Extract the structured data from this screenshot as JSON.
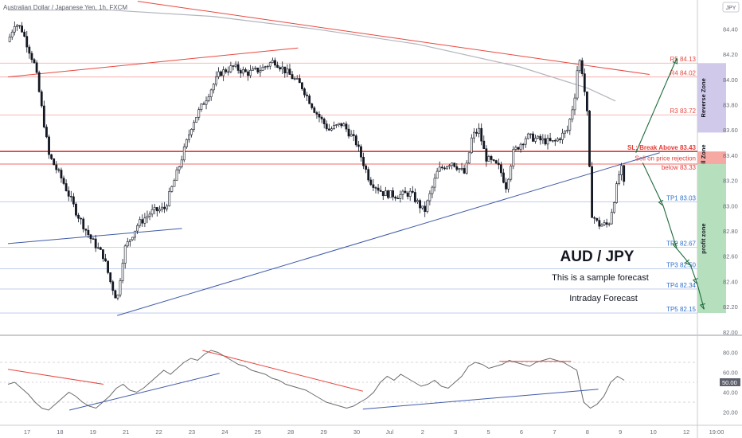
{
  "title": "Australian Dollar / Japanese Yen, 1h, FXCM",
  "currency_badge": "JPY",
  "annotations": {
    "pair": "AUD / JPY",
    "sample": "This is a sample forecast",
    "intraday": "Intraday Forecast"
  },
  "zones": {
    "reverse": "Reverse Zone",
    "sell": "Sell Zone",
    "profit": "profit zone"
  },
  "colors": {
    "bull": "#131722",
    "bear": "#131722",
    "resistance": "#e8483f",
    "support_line": "#3f5aa8",
    "target": "#2f70c8",
    "forecast_arrow": "#1d6b3e",
    "rsi": "#6b6b6b",
    "reverse_zone": "#d1c9ea",
    "sell_zone": "#f6a9a3",
    "profit_zone": "#b6dfbd"
  },
  "chart_data": {
    "type": "candlestick",
    "price_axis": {
      "ylim": [
        81.98,
        84.63
      ],
      "ticks": [
        "84.40",
        "84.20",
        "84.00",
        "83.80",
        "83.60",
        "83.40",
        "83.20",
        "83.00",
        "82.80",
        "82.60",
        "82.40",
        "82.20",
        "82.00"
      ]
    },
    "time_axis": {
      "labels": [
        "17",
        "18",
        "19",
        "21",
        "22",
        "23",
        "24",
        "25",
        "28",
        "29",
        "30",
        "Jul",
        "2",
        "3",
        "5",
        "6",
        "7",
        "8",
        "9",
        "10",
        "12",
        "19:00"
      ]
    },
    "levels": [
      {
        "label": "R5 84.13",
        "value": 84.13,
        "kind": "resistance"
      },
      {
        "label": "R4 84.02",
        "value": 84.02,
        "kind": "resistance"
      },
      {
        "label": "R3 83.72",
        "value": 83.72,
        "kind": "resistance"
      },
      {
        "label": "SL: Break Above 83.43",
        "value": 83.43,
        "kind": "stop"
      },
      {
        "label": "Sell on price rejection",
        "value": 83.37,
        "kind": "sell"
      },
      {
        "label": "below 83.33",
        "value": 83.33,
        "kind": "sell"
      },
      {
        "label": "TP1 83.03",
        "value": 83.03,
        "kind": "target"
      },
      {
        "label": "TP2 82.67",
        "value": 82.67,
        "kind": "target"
      },
      {
        "label": "TP3 82.50",
        "value": 82.5,
        "kind": "target"
      },
      {
        "label": "TP4 82.34",
        "value": 82.34,
        "kind": "target"
      },
      {
        "label": "TP5 82.15",
        "value": 82.15,
        "kind": "target"
      }
    ],
    "price_path": [
      [
        0,
        84.3
      ],
      [
        1,
        84.45
      ],
      [
        2,
        84.4
      ],
      [
        4,
        84.1
      ],
      [
        6,
        83.4
      ],
      [
        8,
        83.2
      ],
      [
        10,
        82.95
      ],
      [
        12,
        82.75
      ],
      [
        14,
        82.6
      ],
      [
        15,
        82.4
      ],
      [
        16,
        82.25
      ],
      [
        17,
        82.65
      ],
      [
        19,
        82.85
      ],
      [
        21,
        82.95
      ],
      [
        23,
        82.98
      ],
      [
        25,
        83.3
      ],
      [
        27,
        83.65
      ],
      [
        29,
        83.85
      ],
      [
        31,
        84.05
      ],
      [
        33,
        84.1
      ],
      [
        35,
        84.05
      ],
      [
        37,
        84.08
      ],
      [
        39,
        84.15
      ],
      [
        41,
        84.05
      ],
      [
        43,
        83.95
      ],
      [
        45,
        83.75
      ],
      [
        47,
        83.6
      ],
      [
        49,
        83.65
      ],
      [
        51,
        83.5
      ],
      [
        53,
        83.2
      ],
      [
        55,
        83.1
      ],
      [
        57,
        83.08
      ],
      [
        59,
        83.1
      ],
      [
        61,
        82.95
      ],
      [
        63,
        83.28
      ],
      [
        65,
        83.35
      ],
      [
        67,
        83.25
      ],
      [
        68,
        83.55
      ],
      [
        69,
        83.6
      ],
      [
        70,
        83.38
      ],
      [
        72,
        83.3
      ],
      [
        73,
        83.15
      ],
      [
        74,
        83.42
      ],
      [
        76,
        83.55
      ],
      [
        78,
        83.52
      ],
      [
        80,
        83.5
      ],
      [
        82,
        83.6
      ],
      [
        83,
        83.85
      ],
      [
        83.6,
        84.18
      ],
      [
        84.2,
        84.05
      ],
      [
        85,
        83.65
      ],
      [
        85.4,
        82.95
      ],
      [
        86.5,
        82.85
      ],
      [
        88,
        82.85
      ],
      [
        89,
        83.1
      ],
      [
        89.8,
        83.32
      ],
      [
        90.3,
        83.15
      ]
    ],
    "resistance_lines": [
      {
        "from": [
          0,
          84.02
        ],
        "to": [
          42.5,
          84.25
        ]
      },
      {
        "from": [
          19,
          84.62
        ],
        "to": [
          94,
          84.04
        ]
      }
    ],
    "support_lines": [
      {
        "from": [
          0,
          82.7
        ],
        "to": [
          25.5,
          82.82
        ]
      },
      {
        "from": [
          16,
          82.13
        ],
        "to": [
          95.5,
          83.42
        ]
      }
    ],
    "moving_average": [
      [
        0,
        84.55
      ],
      [
        15,
        84.55
      ],
      [
        30,
        84.5
      ],
      [
        45,
        84.4
      ],
      [
        60,
        84.28
      ],
      [
        75,
        84.1
      ],
      [
        85,
        83.93
      ],
      [
        89,
        83.83
      ]
    ],
    "forecast_path": [
      [
        92,
        83.42
      ],
      [
        98,
        84.17
      ],
      [
        93,
        83.34
      ],
      [
        96,
        83.0
      ],
      [
        98,
        82.66
      ],
      [
        100,
        82.53
      ],
      [
        101,
        82.38
      ],
      [
        102,
        82.18
      ]
    ],
    "rsi": {
      "ylim": [
        10,
        90
      ],
      "ticks": [
        "80.00",
        "60.00",
        "40.00",
        "20.00"
      ],
      "current_label": "50.00",
      "values": [
        48,
        50,
        44,
        38,
        30,
        24,
        22,
        28,
        34,
        40,
        36,
        30,
        26,
        24,
        30,
        36,
        44,
        48,
        42,
        40,
        44,
        50,
        56,
        62,
        58,
        64,
        70,
        74,
        72,
        78,
        82,
        80,
        76,
        72,
        68,
        66,
        62,
        60,
        58,
        54,
        52,
        48,
        46,
        44,
        42,
        38,
        34,
        30,
        28,
        26,
        24,
        26,
        30,
        34,
        40,
        50,
        56,
        52,
        58,
        54,
        50,
        46,
        48,
        52,
        46,
        44,
        50,
        56,
        66,
        70,
        68,
        64,
        66,
        68,
        72,
        70,
        68,
        66,
        70,
        72,
        74,
        72,
        70,
        66,
        62,
        30,
        24,
        28,
        36,
        50,
        56,
        52
      ]
    }
  }
}
